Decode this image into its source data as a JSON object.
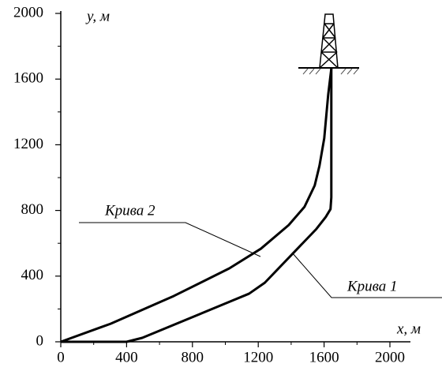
{
  "chart_data": {
    "type": "line",
    "xlabel": "x, м",
    "ylabel": "y, м",
    "xlim": [
      0,
      2000
    ],
    "ylim": [
      0,
      2000
    ],
    "xticks": [
      0,
      400,
      800,
      1200,
      1600,
      2000
    ],
    "yticks": [
      0,
      400,
      800,
      1200,
      1600,
      2000
    ],
    "xminorticks": [
      200,
      600,
      1000,
      1400,
      1800
    ],
    "yminorticks": [
      200,
      600,
      1000,
      1400,
      1800
    ],
    "series": [
      {
        "name": "Крива 1",
        "color": "#000000",
        "x": [
          0,
          400,
          495,
          1144,
          1240,
          1553,
          1610,
          1639,
          1644,
          1644
        ],
        "y": [
          0,
          0,
          24,
          293,
          360,
          687,
          760,
          808,
          880,
          1670
        ]
      },
      {
        "name": "Крива 2",
        "color": "#000000",
        "x": [
          0,
          303,
          687,
          1024,
          1216,
          1385,
          1481,
          1543,
          1572,
          1601,
          1625,
          1644
        ],
        "y": [
          0,
          110,
          279,
          447,
          567,
          711,
          822,
          952,
          1072,
          1240,
          1505,
          1663
        ]
      }
    ]
  }
}
